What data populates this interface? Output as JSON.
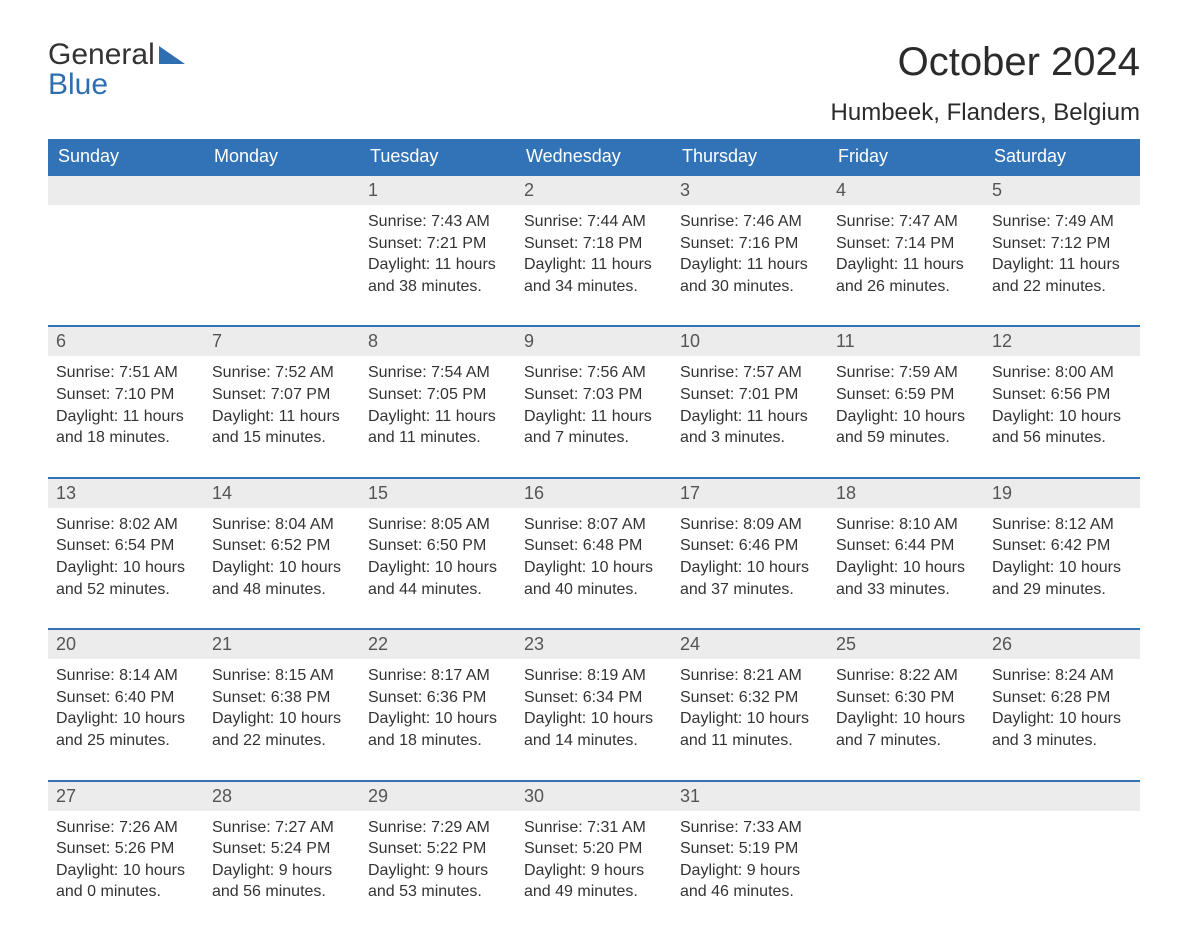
{
  "brand": {
    "line1": "General",
    "line2": "Blue"
  },
  "title": "October 2024",
  "location": "Humbeek, Flanders, Belgium",
  "colors": {
    "header_bg": "#3173b6",
    "header_text": "#ffffff",
    "daynum_bg": "#ececec",
    "daynum_border_top": "#3173b6",
    "body_text": "#333333",
    "brand_blue": "#2f6fb0",
    "page_bg": "#ffffff"
  },
  "typography": {
    "title_fontsize": 40,
    "location_fontsize": 24,
    "weekday_fontsize": 18,
    "daynum_fontsize": 18,
    "cell_fontsize": 16,
    "font_family": "Arial"
  },
  "weekdays": [
    "Sunday",
    "Monday",
    "Tuesday",
    "Wednesday",
    "Thursday",
    "Friday",
    "Saturday"
  ],
  "weeks": [
    [
      {
        "day": "",
        "sunrise": "",
        "sunset": "",
        "daylight": ""
      },
      {
        "day": "",
        "sunrise": "",
        "sunset": "",
        "daylight": ""
      },
      {
        "day": "1",
        "sunrise": "Sunrise: 7:43 AM",
        "sunset": "Sunset: 7:21 PM",
        "daylight": "Daylight: 11 hours and 38 minutes."
      },
      {
        "day": "2",
        "sunrise": "Sunrise: 7:44 AM",
        "sunset": "Sunset: 7:18 PM",
        "daylight": "Daylight: 11 hours and 34 minutes."
      },
      {
        "day": "3",
        "sunrise": "Sunrise: 7:46 AM",
        "sunset": "Sunset: 7:16 PM",
        "daylight": "Daylight: 11 hours and 30 minutes."
      },
      {
        "day": "4",
        "sunrise": "Sunrise: 7:47 AM",
        "sunset": "Sunset: 7:14 PM",
        "daylight": "Daylight: 11 hours and 26 minutes."
      },
      {
        "day": "5",
        "sunrise": "Sunrise: 7:49 AM",
        "sunset": "Sunset: 7:12 PM",
        "daylight": "Daylight: 11 hours and 22 minutes."
      }
    ],
    [
      {
        "day": "6",
        "sunrise": "Sunrise: 7:51 AM",
        "sunset": "Sunset: 7:10 PM",
        "daylight": "Daylight: 11 hours and 18 minutes."
      },
      {
        "day": "7",
        "sunrise": "Sunrise: 7:52 AM",
        "sunset": "Sunset: 7:07 PM",
        "daylight": "Daylight: 11 hours and 15 minutes."
      },
      {
        "day": "8",
        "sunrise": "Sunrise: 7:54 AM",
        "sunset": "Sunset: 7:05 PM",
        "daylight": "Daylight: 11 hours and 11 minutes."
      },
      {
        "day": "9",
        "sunrise": "Sunrise: 7:56 AM",
        "sunset": "Sunset: 7:03 PM",
        "daylight": "Daylight: 11 hours and 7 minutes."
      },
      {
        "day": "10",
        "sunrise": "Sunrise: 7:57 AM",
        "sunset": "Sunset: 7:01 PM",
        "daylight": "Daylight: 11 hours and 3 minutes."
      },
      {
        "day": "11",
        "sunrise": "Sunrise: 7:59 AM",
        "sunset": "Sunset: 6:59 PM",
        "daylight": "Daylight: 10 hours and 59 minutes."
      },
      {
        "day": "12",
        "sunrise": "Sunrise: 8:00 AM",
        "sunset": "Sunset: 6:56 PM",
        "daylight": "Daylight: 10 hours and 56 minutes."
      }
    ],
    [
      {
        "day": "13",
        "sunrise": "Sunrise: 8:02 AM",
        "sunset": "Sunset: 6:54 PM",
        "daylight": "Daylight: 10 hours and 52 minutes."
      },
      {
        "day": "14",
        "sunrise": "Sunrise: 8:04 AM",
        "sunset": "Sunset: 6:52 PM",
        "daylight": "Daylight: 10 hours and 48 minutes."
      },
      {
        "day": "15",
        "sunrise": "Sunrise: 8:05 AM",
        "sunset": "Sunset: 6:50 PM",
        "daylight": "Daylight: 10 hours and 44 minutes."
      },
      {
        "day": "16",
        "sunrise": "Sunrise: 8:07 AM",
        "sunset": "Sunset: 6:48 PM",
        "daylight": "Daylight: 10 hours and 40 minutes."
      },
      {
        "day": "17",
        "sunrise": "Sunrise: 8:09 AM",
        "sunset": "Sunset: 6:46 PM",
        "daylight": "Daylight: 10 hours and 37 minutes."
      },
      {
        "day": "18",
        "sunrise": "Sunrise: 8:10 AM",
        "sunset": "Sunset: 6:44 PM",
        "daylight": "Daylight: 10 hours and 33 minutes."
      },
      {
        "day": "19",
        "sunrise": "Sunrise: 8:12 AM",
        "sunset": "Sunset: 6:42 PM",
        "daylight": "Daylight: 10 hours and 29 minutes."
      }
    ],
    [
      {
        "day": "20",
        "sunrise": "Sunrise: 8:14 AM",
        "sunset": "Sunset: 6:40 PM",
        "daylight": "Daylight: 10 hours and 25 minutes."
      },
      {
        "day": "21",
        "sunrise": "Sunrise: 8:15 AM",
        "sunset": "Sunset: 6:38 PM",
        "daylight": "Daylight: 10 hours and 22 minutes."
      },
      {
        "day": "22",
        "sunrise": "Sunrise: 8:17 AM",
        "sunset": "Sunset: 6:36 PM",
        "daylight": "Daylight: 10 hours and 18 minutes."
      },
      {
        "day": "23",
        "sunrise": "Sunrise: 8:19 AM",
        "sunset": "Sunset: 6:34 PM",
        "daylight": "Daylight: 10 hours and 14 minutes."
      },
      {
        "day": "24",
        "sunrise": "Sunrise: 8:21 AM",
        "sunset": "Sunset: 6:32 PM",
        "daylight": "Daylight: 10 hours and 11 minutes."
      },
      {
        "day": "25",
        "sunrise": "Sunrise: 8:22 AM",
        "sunset": "Sunset: 6:30 PM",
        "daylight": "Daylight: 10 hours and 7 minutes."
      },
      {
        "day": "26",
        "sunrise": "Sunrise: 8:24 AM",
        "sunset": "Sunset: 6:28 PM",
        "daylight": "Daylight: 10 hours and 3 minutes."
      }
    ],
    [
      {
        "day": "27",
        "sunrise": "Sunrise: 7:26 AM",
        "sunset": "Sunset: 5:26 PM",
        "daylight": "Daylight: 10 hours and 0 minutes."
      },
      {
        "day": "28",
        "sunrise": "Sunrise: 7:27 AM",
        "sunset": "Sunset: 5:24 PM",
        "daylight": "Daylight: 9 hours and 56 minutes."
      },
      {
        "day": "29",
        "sunrise": "Sunrise: 7:29 AM",
        "sunset": "Sunset: 5:22 PM",
        "daylight": "Daylight: 9 hours and 53 minutes."
      },
      {
        "day": "30",
        "sunrise": "Sunrise: 7:31 AM",
        "sunset": "Sunset: 5:20 PM",
        "daylight": "Daylight: 9 hours and 49 minutes."
      },
      {
        "day": "31",
        "sunrise": "Sunrise: 7:33 AM",
        "sunset": "Sunset: 5:19 PM",
        "daylight": "Daylight: 9 hours and 46 minutes."
      },
      {
        "day": "",
        "sunrise": "",
        "sunset": "",
        "daylight": ""
      },
      {
        "day": "",
        "sunrise": "",
        "sunset": "",
        "daylight": ""
      }
    ]
  ]
}
